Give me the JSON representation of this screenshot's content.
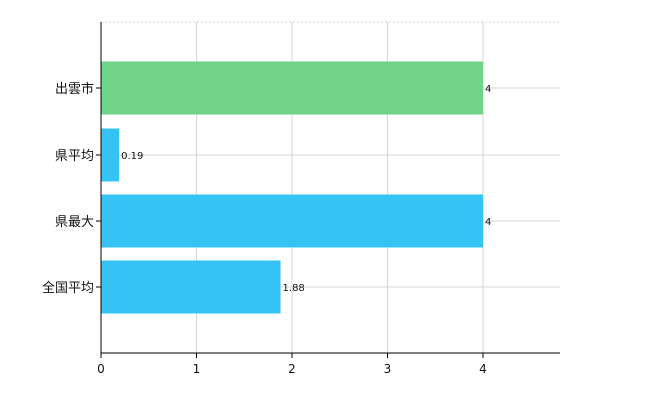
{
  "chart_data": {
    "type": "bar",
    "orientation": "horizontal",
    "categories": [
      "出雲市",
      "県平均",
      "県最大",
      "全国平均"
    ],
    "values": [
      4,
      0.19,
      4,
      1.88
    ],
    "value_labels": [
      "4",
      "0.19",
      "4",
      "1.88"
    ],
    "bar_colors": [
      "#6fd48a",
      "#35c3f6",
      "#35c3f6",
      "#35c3f6"
    ],
    "x_ticks": [
      "0",
      "1",
      "2",
      "3",
      "4"
    ],
    "xlim": [
      0,
      4.8
    ],
    "grid": true,
    "title": "",
    "xlabel": "",
    "ylabel": ""
  }
}
